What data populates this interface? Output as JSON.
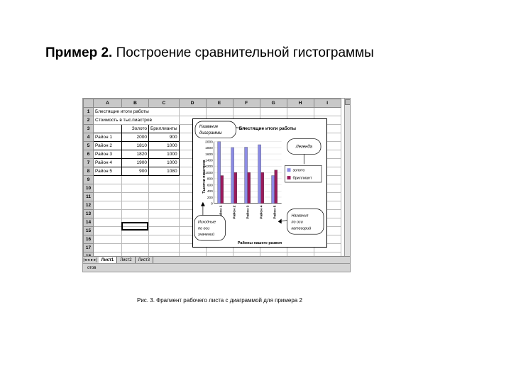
{
  "slide": {
    "title_bold": "Пример 2.",
    "title_rest": "Построение сравнительной гистограммы",
    "caption": "Рис. 3. Фрагмент рабочего листа с диаграммой для примера 2"
  },
  "sheet": {
    "columns": [
      "A",
      "B",
      "C",
      "D",
      "E",
      "F",
      "G",
      "H",
      "I"
    ],
    "row_numbers": [
      "1",
      "2",
      "3",
      "4",
      "5",
      "6",
      "7",
      "8",
      "9",
      "10",
      "11",
      "12",
      "13",
      "14",
      "15",
      "16",
      "17",
      "18"
    ],
    "row1": "Блестящие итоги работы",
    "row2": "Стоимость в тыс.пиастров",
    "header": [
      "",
      "Золото",
      "Бриллианты"
    ],
    "rows": [
      [
        "Район 1",
        "2000",
        "900"
      ],
      [
        "Район 2",
        "1810",
        "1000"
      ],
      [
        "Район 3",
        "1820",
        "1000"
      ],
      [
        "Район 4",
        "1900",
        "1000"
      ],
      [
        "Район 5",
        "900",
        "1080"
      ]
    ],
    "tabs": [
      "Лист1",
      "Лист2",
      "Лист3"
    ],
    "status": "отов"
  },
  "callouts": {
    "title_callout": [
      "Название",
      "диаграммы"
    ],
    "legend_callout": "Легенда",
    "values_callout": [
      "Исходные",
      "по оси",
      "значений"
    ],
    "categories_callout": [
      "Названия",
      "по оси",
      "категорий"
    ]
  },
  "chart_data": {
    "type": "bar",
    "title": "Блестящие итоги работы",
    "xlabel": "Районы нашего развоя",
    "ylabel": "Тысячи пиастров",
    "categories": [
      "Район 1",
      "Район 2",
      "Район 3",
      "Район 4",
      "Район 5"
    ],
    "series": [
      {
        "name": "золото",
        "values": [
          2000,
          1810,
          1820,
          1900,
          900
        ],
        "color": "#8c8ce6"
      },
      {
        "name": "бриллиант",
        "values": [
          900,
          1000,
          1000,
          1000,
          1080
        ],
        "color": "#9a1a5a"
      }
    ],
    "ylim": [
      0,
      2000
    ],
    "yticks": [
      0,
      200,
      400,
      600,
      800,
      1000,
      1200,
      1400,
      1600,
      1800,
      2000
    ],
    "legend": "right"
  }
}
